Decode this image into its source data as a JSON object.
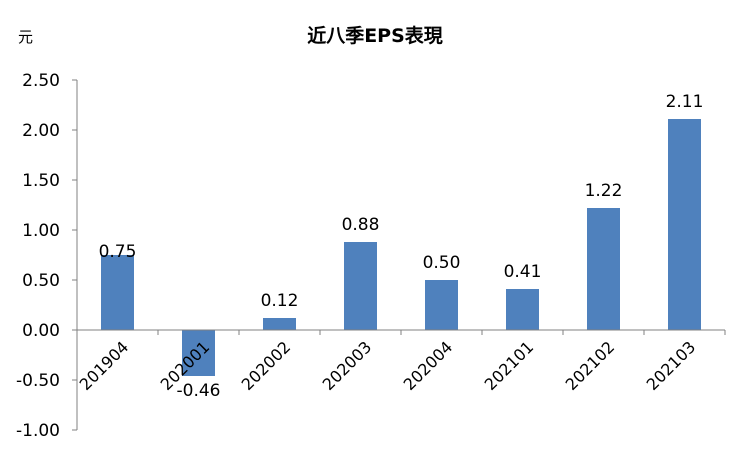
{
  "chart_data": {
    "type": "bar",
    "title": "近八季EPS表現",
    "unit_label": "元",
    "categories": [
      "201904",
      "202001",
      "202002",
      "202003",
      "202004",
      "202101",
      "202102",
      "202103"
    ],
    "values": [
      0.75,
      -0.46,
      0.12,
      0.88,
      0.5,
      0.41,
      1.22,
      2.11
    ],
    "value_labels": [
      "0.75",
      "-0.46",
      "0.12",
      "0.88",
      "0.50",
      "0.41",
      "1.22",
      "2.11"
    ],
    "ylim": [
      -1.0,
      2.5
    ],
    "yticks": [
      2.5,
      2.0,
      1.5,
      1.0,
      0.5,
      0.0,
      -0.5,
      -1.0
    ],
    "ytick_labels": [
      "2.50",
      "2.00",
      "1.50",
      "1.00",
      "0.50",
      "0.00",
      "-0.50",
      "-1.00"
    ],
    "bar_color": "#4F81BD",
    "grid": false,
    "legend": "none"
  }
}
